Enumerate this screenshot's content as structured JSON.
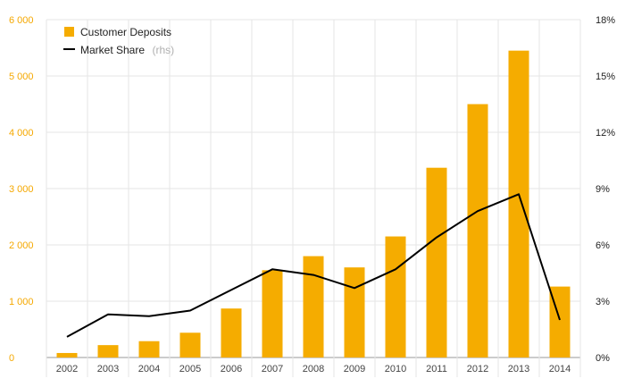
{
  "chart_data": {
    "type": "bar",
    "categories": [
      "2002",
      "2003",
      "2004",
      "2005",
      "2006",
      "2007",
      "2008",
      "2009",
      "2010",
      "2011",
      "2012",
      "2013",
      "2014"
    ],
    "series": [
      {
        "name": "Customer Deposits",
        "type": "bar",
        "axis": "left",
        "color": "#f5ac00",
        "values": [
          80,
          220,
          290,
          440,
          870,
          1550,
          1800,
          1600,
          2150,
          3370,
          4500,
          5450,
          1260
        ]
      },
      {
        "name": "Market Share",
        "type": "line",
        "axis": "right",
        "color": "#000000",
        "values": [
          1.1,
          2.3,
          2.2,
          2.5,
          3.6,
          4.7,
          4.4,
          3.7,
          4.7,
          6.4,
          7.8,
          8.7,
          2.0
        ]
      }
    ],
    "legend": {
      "placement": "top-left",
      "items": [
        {
          "label": "Customer Deposits",
          "suffix": "",
          "marker": "square"
        },
        {
          "label": "Market Share",
          "suffix": "(rhs)",
          "marker": "line"
        }
      ]
    },
    "y_left": {
      "min": 0,
      "max": 6000,
      "ticks": [
        0,
        1000,
        2000,
        3000,
        4000,
        5000,
        6000
      ],
      "tick_labels": [
        "0",
        "1 000",
        "2 000",
        "3 000",
        "4 000",
        "5 000",
        "6 000"
      ],
      "color": "#f5a800"
    },
    "y_right": {
      "min": 0,
      "max": 18,
      "ticks": [
        0,
        3,
        6,
        9,
        12,
        15,
        18
      ],
      "tick_labels": [
        "0%",
        "3%",
        "6%",
        "9%",
        "12%",
        "15%",
        "18%"
      ]
    },
    "grid": true,
    "title": "",
    "xlabel": "",
    "ylabel": ""
  }
}
